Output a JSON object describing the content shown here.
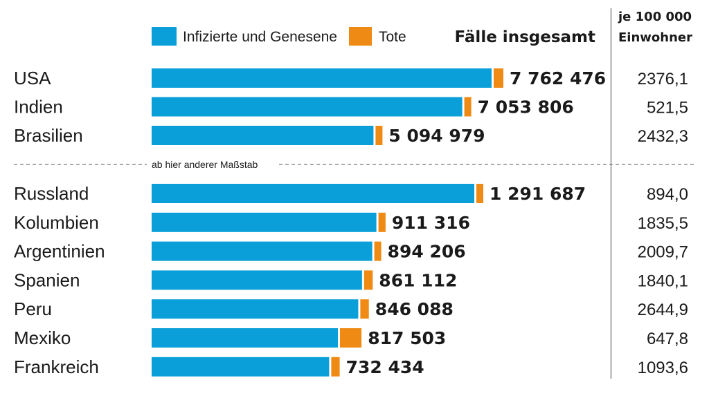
{
  "colors": {
    "infected": "#0a9fd8",
    "deaths": "#ef8a14",
    "divider": "#888888"
  },
  "legend": {
    "infected": "Infizierte und Genesene",
    "deaths": "Tote"
  },
  "headers": {
    "total": "Fälle insgesamt",
    "per_capita_line1": "je 100 000",
    "per_capita_line2": "Einwohner"
  },
  "scale_note": "ab hier anderer Maßstab",
  "chart_data": {
    "type": "bar",
    "orientation": "horizontal",
    "stacked": true,
    "series": [
      {
        "name": "Infizierte und Genesene"
      },
      {
        "name": "Tote"
      }
    ],
    "groups": [
      {
        "rows": [
          {
            "country": "USA",
            "total": 7762476,
            "total_label": "7 762 476",
            "per_100000": "2376,1",
            "deaths": 214000
          },
          {
            "country": "Indien",
            "total": 7053806,
            "total_label": "7 053 806",
            "per_100000": "521,5",
            "deaths": 108000
          },
          {
            "country": "Brasilien",
            "total": 5094979,
            "total_label": "5 094 979",
            "per_100000": "2432,3",
            "deaths": 150000
          }
        ]
      },
      {
        "rows": [
          {
            "country": "Russland",
            "total": 1291687,
            "total_label": "1 291 687",
            "per_100000": "894,0",
            "deaths": 22500
          },
          {
            "country": "Kolumbien",
            "total": 911316,
            "total_label": "911 316",
            "per_100000": "1835,5",
            "deaths": 27800
          },
          {
            "country": "Argentinien",
            "total": 894206,
            "total_label": "894 206",
            "per_100000": "2009,7",
            "deaths": 23900
          },
          {
            "country": "Spanien",
            "total": 861112,
            "total_label": "861 112",
            "per_100000": "1840,1",
            "deaths": 33400
          },
          {
            "country": "Peru",
            "total": 846088,
            "total_label": "846 088",
            "per_100000": "2644,9",
            "deaths": 33200
          },
          {
            "country": "Mexiko",
            "total": 817503,
            "total_label": "817 503",
            "per_100000": "647,8",
            "deaths": 83900
          },
          {
            "country": "Frankreich",
            "total": 732434,
            "total_label": "732 434",
            "per_100000": "1093,6",
            "deaths": 32900
          }
        ]
      }
    ]
  }
}
